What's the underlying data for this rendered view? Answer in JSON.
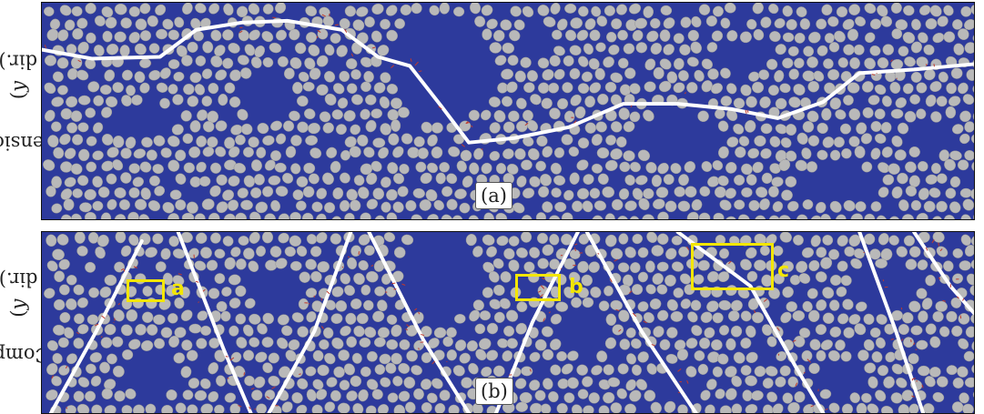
{
  "panel_a": {
    "row_label": "Tension",
    "direction_var": "y",
    "direction_suffix": " dir.)",
    "caption": "(a)"
  },
  "panel_b": {
    "row_label": "Comp.",
    "direction_var": "y",
    "direction_suffix": " dir.)",
    "caption": "(b)"
  },
  "highlights": [
    {
      "label": "a"
    },
    {
      "label": "b"
    },
    {
      "label": "c"
    }
  ],
  "colors": {
    "matrix": "#2d3a9c",
    "fiber": "#b9b9b9",
    "crack": "#ffffff",
    "damage": "#c0392b",
    "highlight": "#f3e600"
  }
}
